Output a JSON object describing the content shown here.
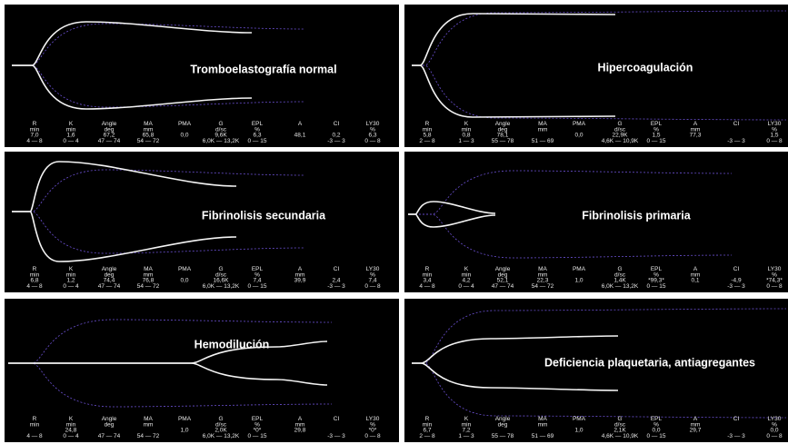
{
  "panels": [
    {
      "title": "Tromboelastografía normal",
      "params": [
        {
          "name": "R",
          "unit": "min",
          "value": "7,0",
          "range": "4 — 8"
        },
        {
          "name": "K",
          "unit": "min",
          "value": "1,6",
          "range": "0 — 4"
        },
        {
          "name": "Angle",
          "unit": "deg",
          "value": "67,2",
          "range": "47 — 74"
        },
        {
          "name": "MA",
          "unit": "mm",
          "value": "65,8",
          "range": "54 — 72"
        },
        {
          "name": "PMA",
          "value": "0,0"
        },
        {
          "name": "G",
          "unit": "d/sc",
          "value": "9,6K",
          "range": "6,0K — 13,2K"
        },
        {
          "name": "EPL",
          "unit": "%",
          "value": "6,3",
          "range": "0 — 15"
        },
        {
          "name": "A",
          "value": "48,1"
        },
        {
          "name": "CI",
          "value": "0,2",
          "range": "-3 — 3"
        },
        {
          "name": "LY30",
          "unit": "%",
          "value": "6,3",
          "range": "0 — 8"
        }
      ]
    },
    {
      "title": "Hipercoagulación",
      "params": [
        {
          "name": "R",
          "unit": "min",
          "value": "5,8",
          "range": "2 — 8"
        },
        {
          "name": "K",
          "unit": "min",
          "value": "0,8",
          "range": "1 — 3"
        },
        {
          "name": "Angle",
          "unit": "deg",
          "value": "78,1",
          "range": "55 — 78"
        },
        {
          "name": "MA",
          "unit": "mm",
          "range": "51 — 69"
        },
        {
          "name": "PMA",
          "value": "0,0"
        },
        {
          "name": "G",
          "unit": "d/sc",
          "value": "22,9K",
          "range": "4,6K — 10,9K"
        },
        {
          "name": "EPL",
          "unit": "%",
          "value": "1,5",
          "range": "0 — 15"
        },
        {
          "name": "A",
          "unit": "mm",
          "value": "77,3"
        },
        {
          "name": "CI",
          "range": "-3 — 3"
        },
        {
          "name": "LY30",
          "unit": "%",
          "value": "1,5",
          "range": "0 — 8"
        }
      ]
    },
    {
      "title": "Fibrinolisis secundaria",
      "params": [
        {
          "name": "R",
          "unit": "min",
          "value": "6,8",
          "range": "4 — 8"
        },
        {
          "name": "K",
          "unit": "min",
          "value": "1,2",
          "range": "0 — 4"
        },
        {
          "name": "Angle",
          "unit": "deg",
          "value": "74,4",
          "range": "47 — 74"
        },
        {
          "name": "MA",
          "unit": "mm",
          "value": "76,8",
          "range": "54 — 72"
        },
        {
          "name": "PMA",
          "value": "0,0"
        },
        {
          "name": "G",
          "unit": "d/sc",
          "value": "16,6K",
          "range": "6,0K — 13,2K"
        },
        {
          "name": "EPL",
          "unit": "%",
          "value": "7,4",
          "range": "0 — 15"
        },
        {
          "name": "A",
          "unit": "mm",
          "value": "39,9"
        },
        {
          "name": "CI",
          "value": "2,4",
          "range": "-3 — 3"
        },
        {
          "name": "LY30",
          "unit": "%",
          "value": "7,4",
          "range": "0 — 8"
        }
      ]
    },
    {
      "title": "Fibrinolisis primaria",
      "params": [
        {
          "name": "R",
          "unit": "min",
          "value": "3,4",
          "range": "4 — 8"
        },
        {
          "name": "K",
          "unit": "min",
          "value": "4,2",
          "range": "0 — 4"
        },
        {
          "name": "Angle",
          "unit": "deg",
          "value": "52,1",
          "range": "47 — 74"
        },
        {
          "name": "MA",
          "unit": "mm",
          "value": "22,3",
          "range": "54 — 72"
        },
        {
          "name": "PMA",
          "value": "1,0"
        },
        {
          "name": "G",
          "unit": "d/sc",
          "value": "1,4K",
          "range": "6,0K — 13,2K"
        },
        {
          "name": "EPL",
          "unit": "%",
          "value": "*99,3*",
          "range": "0 — 15"
        },
        {
          "name": "A",
          "unit": "mm",
          "value": "0,1"
        },
        {
          "name": "CI",
          "value": "-4,9",
          "range": "-3 — 3"
        },
        {
          "name": "LY30",
          "unit": "%",
          "value": "*74,3*",
          "range": "0 — 8"
        }
      ]
    },
    {
      "title": "Hemodilución",
      "params": [
        {
          "name": "R",
          "unit": "min",
          "range": "4 — 8"
        },
        {
          "name": "K",
          "unit": "min",
          "value": "24,8",
          "range": "0 — 4"
        },
        {
          "name": "Angle",
          "unit": "deg",
          "range": "47 — 74"
        },
        {
          "name": "MA",
          "unit": "mm",
          "range": "54 — 72"
        },
        {
          "name": "PMA",
          "value": "1,0"
        },
        {
          "name": "G",
          "unit": "d/sc",
          "value": "2,0K",
          "range": "6,0K — 13,2K"
        },
        {
          "name": "EPL",
          "unit": "%",
          "value": "*0*",
          "range": "0 — 15"
        },
        {
          "name": "A",
          "unit": "mm",
          "value": "29,8"
        },
        {
          "name": "CI",
          "range": "-3 — 3"
        },
        {
          "name": "LY30",
          "unit": "%",
          "value": "*0*",
          "range": "0 — 8"
        }
      ]
    },
    {
      "title": "Deficiencia plaquetaria, antiagregantes",
      "params": [
        {
          "name": "R",
          "unit": "min",
          "value": "6,7",
          "range": "2 — 8"
        },
        {
          "name": "K",
          "unit": "min",
          "value": "7,2",
          "range": "1 — 3"
        },
        {
          "name": "Angle",
          "unit": "deg",
          "range": "55 — 78"
        },
        {
          "name": "MA",
          "unit": "mm",
          "range": "51 — 69"
        },
        {
          "name": "PMA",
          "value": "1,0"
        },
        {
          "name": "G",
          "unit": "d/sc",
          "value": "2,1K",
          "range": "4,6K — 10,9K"
        },
        {
          "name": "EPL",
          "unit": "%",
          "value": "0,0",
          "range": "0 — 15"
        },
        {
          "name": "A",
          "unit": "mm",
          "value": "29,7"
        },
        {
          "name": "CI",
          "range": "-3 — 3"
        },
        {
          "name": "LY30",
          "unit": "%",
          "value": "0,0",
          "range": "0 — 8"
        }
      ]
    }
  ]
}
